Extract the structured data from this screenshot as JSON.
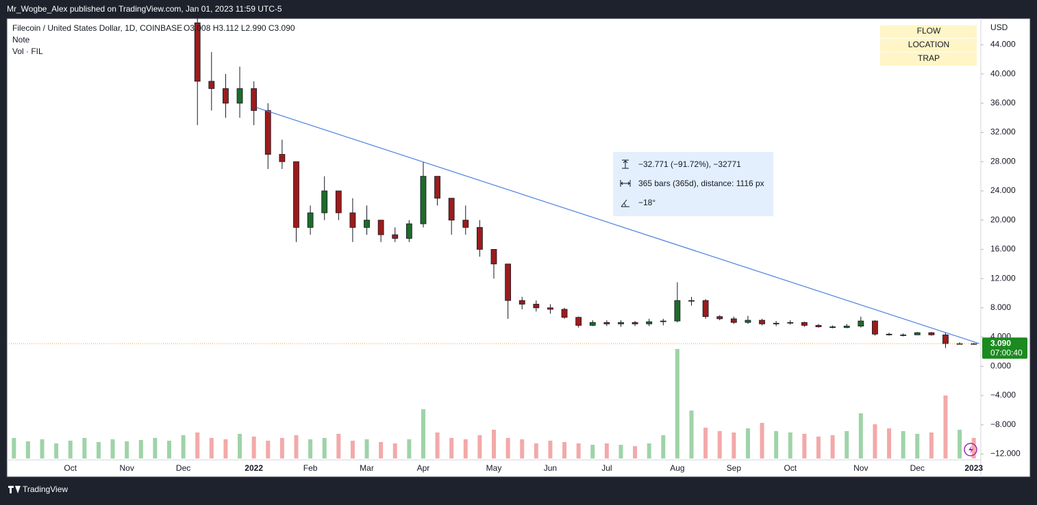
{
  "header": {
    "published": "Mr_Wogbe_Alex published on TradingView.com, Jan 01, 2023 11:59 UTC-5",
    "brand": "TradingView"
  },
  "chart_data": {
    "type": "candlestick",
    "title": "Filecoin / United States Dollar, 1D, COINBASE",
    "ohlc_text": "O3.008  H3.112  L2.990  C3.090",
    "legend_lines": [
      "Note",
      "Vol · FIL"
    ],
    "currency": "USD",
    "labels_box": [
      "FLOW",
      "LOCATION",
      "TRAP"
    ],
    "categories": [
      null,
      null,
      null,
      null,
      "Oct",
      null,
      null,
      null,
      "Nov",
      null,
      null,
      null,
      "Dec",
      null,
      null,
      null,
      null,
      "2022",
      null,
      null,
      null,
      "Feb",
      null,
      null,
      null,
      "Mar",
      null,
      null,
      null,
      "Apr",
      null,
      null,
      null,
      null,
      "May",
      null,
      null,
      null,
      "Jun",
      null,
      null,
      null,
      "Jul",
      null,
      null,
      null,
      null,
      "Aug",
      null,
      null,
      null,
      "Sep",
      null,
      null,
      null,
      "Oct",
      null,
      null,
      null,
      null,
      "Nov",
      null,
      null,
      null,
      "Dec",
      null,
      null,
      null,
      "2023"
    ],
    "open": [
      null,
      null,
      null,
      null,
      null,
      null,
      null,
      null,
      null,
      null,
      null,
      null,
      null,
      47,
      39,
      38,
      36,
      38,
      35,
      29,
      28,
      19,
      21,
      24,
      21,
      19,
      20,
      18,
      17.5,
      19.5,
      26,
      23,
      20,
      19,
      16,
      14,
      9,
      8.5,
      8,
      7.8,
      6.7,
      5.6,
      6,
      5.8,
      6,
      5.8,
      6.1,
      6.2,
      9,
      9,
      6.8,
      6.5,
      6,
      6.3,
      5.8,
      5.9,
      6,
      5.6,
      5.4,
      5.3,
      5.5,
      6.2,
      4.4,
      4.3,
      4.3,
      4.6,
      4.3,
      3.1,
      3.1
    ],
    "high": [
      null,
      null,
      null,
      null,
      null,
      null,
      null,
      null,
      null,
      null,
      null,
      null,
      null,
      48,
      43,
      40,
      41,
      39,
      36,
      31,
      28,
      22,
      26,
      24,
      23,
      22,
      20,
      19,
      20,
      28,
      26,
      23,
      22,
      20,
      16,
      14,
      9.5,
      9,
      8.5,
      8,
      6.8,
      6.3,
      6.3,
      6.3,
      6.2,
      6.5,
      6.5,
      11.5,
      9.5,
      9.2,
      7,
      6.8,
      6.9,
      6.5,
      6.2,
      6.3,
      6.1,
      5.8,
      5.6,
      5.8,
      6.8,
      6.3,
      4.6,
      4.5,
      4.7,
      4.7,
      4.6,
      3.3,
      3.2
    ],
    "low": [
      null,
      null,
      null,
      null,
      null,
      null,
      null,
      null,
      null,
      null,
      null,
      null,
      null,
      33,
      35,
      34,
      34,
      33,
      27,
      27,
      17,
      18,
      20,
      20,
      17,
      18,
      17,
      17,
      17,
      19,
      22,
      18,
      18,
      15,
      12,
      6.5,
      7.8,
      7.5,
      7.2,
      6.5,
      5.3,
      5.5,
      5.5,
      5.4,
      5.5,
      5.5,
      5.6,
      6,
      8.3,
      6.5,
      6.3,
      5.8,
      5.8,
      5.6,
      5.5,
      5.7,
      5.4,
      5.3,
      5.2,
      5.2,
      5.3,
      4.2,
      4.2,
      4.1,
      4.3,
      4.2,
      2.5,
      3,
      2.95
    ],
    "close": [
      null,
      null,
      null,
      null,
      null,
      null,
      null,
      null,
      null,
      null,
      null,
      null,
      null,
      39,
      38,
      36,
      38,
      35,
      29,
      28,
      19,
      21,
      24,
      21,
      19,
      20,
      18,
      17.5,
      19.5,
      26,
      23,
      20,
      19,
      16,
      14,
      9,
      8.5,
      8,
      7.8,
      6.7,
      5.6,
      6,
      5.8,
      6,
      5.8,
      6.1,
      6.2,
      9,
      9,
      6.8,
      6.5,
      6,
      6.3,
      5.8,
      5.9,
      6,
      5.6,
      5.4,
      5.3,
      5.5,
      6.2,
      4.4,
      4.3,
      4.3,
      4.6,
      4.3,
      3.1,
      3.1,
      3.09
    ],
    "volume": [
      30,
      25,
      28,
      22,
      26,
      30,
      24,
      28,
      25,
      27,
      30,
      26,
      34,
      38,
      30,
      28,
      36,
      32,
      26,
      30,
      34,
      28,
      30,
      36,
      26,
      28,
      24,
      22,
      28,
      72,
      38,
      30,
      28,
      34,
      42,
      30,
      28,
      22,
      26,
      24,
      22,
      20,
      22,
      20,
      18,
      22,
      34,
      160,
      70,
      45,
      40,
      38,
      44,
      52,
      40,
      38,
      36,
      32,
      34,
      40,
      66,
      50,
      44,
      40,
      36,
      38,
      92,
      42,
      30
    ],
    "up_color": "#1f6b2a",
    "down_color": "#9b1c1c",
    "volume_up_color": "#9fd3a8",
    "volume_down_color": "#f3a9a9",
    "ylim": [
      -12.8,
      47.5
    ],
    "yticks": [
      {
        "value": -12,
        "label": "−12.000"
      },
      {
        "value": -8,
        "label": "−8.000"
      },
      {
        "value": -4,
        "label": "−4.000"
      },
      {
        "value": 0,
        "label": "0.000"
      },
      {
        "value": 4,
        "label": "4.000"
      },
      {
        "value": 8,
        "label": "8.000"
      },
      {
        "value": 12,
        "label": "12.000"
      },
      {
        "value": 16,
        "label": "16.000"
      },
      {
        "value": 20,
        "label": "20.000"
      },
      {
        "value": 24,
        "label": "24.000"
      },
      {
        "value": 28,
        "label": "28.000"
      },
      {
        "value": 32,
        "label": "32.000"
      },
      {
        "value": 36,
        "label": "36.000"
      },
      {
        "value": 40,
        "label": "40.000"
      },
      {
        "value": 44,
        "label": "44.000"
      }
    ],
    "trendline": {
      "x": [
        17.2,
        68.4
      ],
      "y": [
        35.4,
        3.1
      ],
      "color": "#4a7fe0"
    },
    "measure": [
      "−32.771 (−91.72%), −32771",
      "365 bars (365d), distance: 1116 px",
      "−18°"
    ],
    "last_price": {
      "value": 3.09,
      "label": "3.090"
    },
    "countdown": "07:00:40"
  }
}
